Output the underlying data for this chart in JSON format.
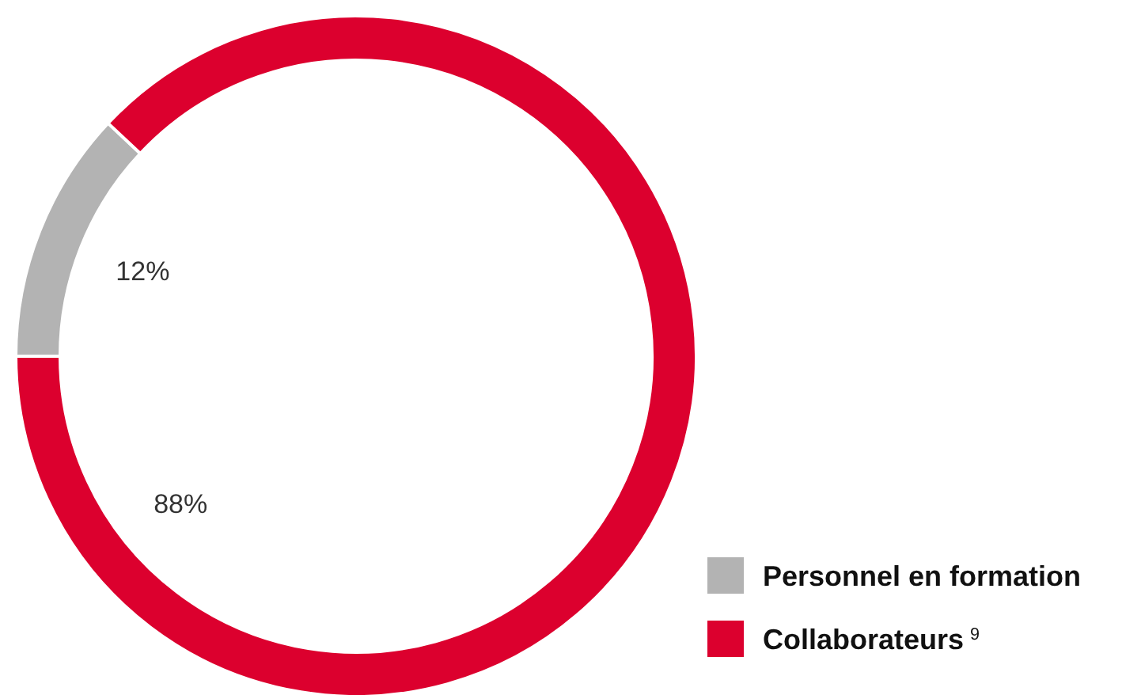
{
  "chart_data": {
    "type": "donut",
    "categories": [
      "Personnel en formation",
      "Collaborateurs$^{9}$"
    ],
    "values": [
      12,
      88
    ],
    "colors": [
      "#b3b3b3",
      "#dc002e"
    ],
    "value_labels": [
      "12%",
      "88%"
    ],
    "legend": "bottom right"
  }
}
